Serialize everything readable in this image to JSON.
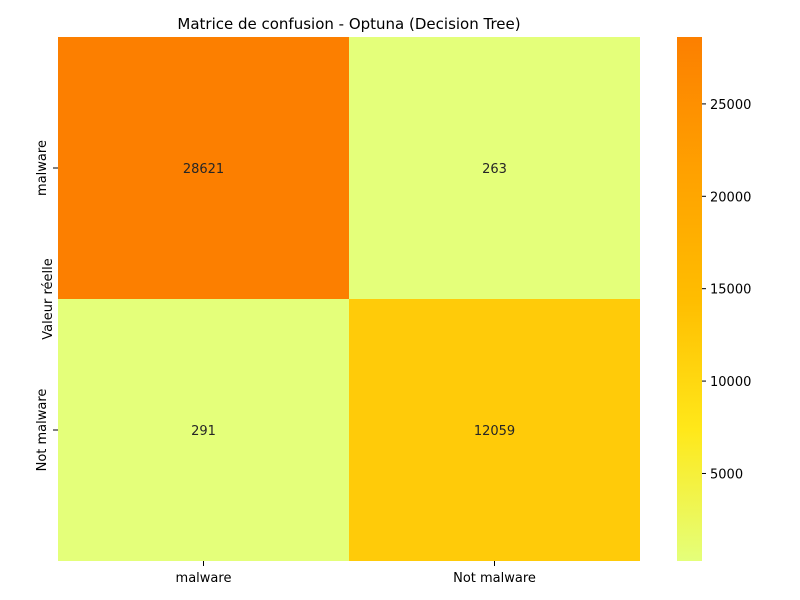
{
  "chart_data": {
    "type": "heatmap",
    "title": "Matrice de confusion - Optuna (Decision Tree)",
    "xlabel": "",
    "ylabel": "Valeur réelle",
    "x_categories": [
      "malware",
      "Not malware"
    ],
    "y_categories": [
      "malware",
      "Not malware"
    ],
    "values": [
      [
        28621,
        263
      ],
      [
        291,
        12059
      ]
    ],
    "colormap": "Wistia",
    "colorbar": {
      "ticks": [
        5000,
        10000,
        15000,
        20000,
        25000
      ],
      "range": [
        263,
        28621
      ]
    }
  }
}
